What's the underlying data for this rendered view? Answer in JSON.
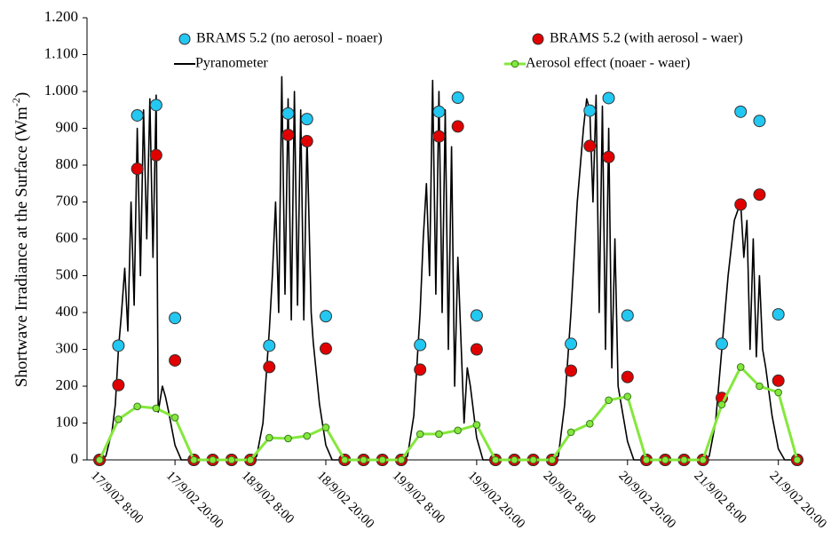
{
  "chart_data": {
    "type": "scatter",
    "y_label": [
      "Shortwave Irradiance at the Surface (Wm",
      "-2",
      ")"
    ],
    "ylim": [
      0,
      1200
    ],
    "yticks": [
      0,
      100,
      200,
      300,
      400,
      500,
      600,
      700,
      800,
      900,
      {
        "value": 1000,
        "label": "1.000"
      },
      {
        "value": 1100,
        "label": "1.100"
      },
      {
        "value": 1200,
        "label": "1.200"
      }
    ],
    "xlim": [
      "17/9/02 6:00",
      "22/9/02 0:00"
    ],
    "xticks": [
      "17/9/02 8:00",
      "17/9/02 20:00",
      "18/9/02 8:00",
      "18/9/02 20:00",
      "19/9/02 8:00",
      "19/9/02 20:00",
      "20/9/02 8:00",
      "20/9/02 20:00",
      "21/9/02 8:00",
      "21/9/02 20:00"
    ],
    "grid": false,
    "x": [
      "17/9/02 8:00",
      "17/9/02 11:00",
      "17/9/02 14:00",
      "17/9/02 17:00",
      "17/9/02 20:00",
      "17/9/02 23:00",
      "18/9/02 2:00",
      "18/9/02 5:00",
      "18/9/02 8:00",
      "18/9/02 11:00",
      "18/9/02 14:00",
      "18/9/02 17:00",
      "18/9/02 20:00",
      "18/9/02 23:00",
      "19/9/02 2:00",
      "19/9/02 5:00",
      "19/9/02 8:00",
      "19/9/02 11:00",
      "19/9/02 14:00",
      "19/9/02 17:00",
      "19/9/02 20:00",
      "19/9/02 23:00",
      "20/9/02 2:00",
      "20/9/02 5:00",
      "20/9/02 8:00",
      "20/9/02 11:00",
      "20/9/02 14:00",
      "20/9/02 17:00",
      "20/9/02 20:00",
      "20/9/02 23:00",
      "21/9/02 2:00",
      "21/9/02 5:00",
      "21/9/02 8:00",
      "21/9/02 11:00",
      "21/9/02 14:00",
      "21/9/02 17:00",
      "21/9/02 20:00",
      "21/9/02 23:00"
    ],
    "series": [
      {
        "name": "BRAMS 5.2 (no aerosol - noaer)",
        "color": "#22c8f2",
        "style": "markers",
        "values": [
          0,
          310,
          935,
          963,
          385,
          0,
          0,
          0,
          0,
          310,
          940,
          925,
          390,
          0,
          0,
          0,
          0,
          312,
          945,
          983,
          392,
          0,
          0,
          0,
          0,
          315,
          948,
          982,
          392,
          0,
          0,
          0,
          0,
          315,
          945,
          920,
          395,
          0
        ]
      },
      {
        "name": "BRAMS 5.2 (with aerosol - waer)",
        "color": "#e00000",
        "style": "markers",
        "values": [
          0,
          203,
          790,
          827,
          270,
          0,
          0,
          0,
          0,
          252,
          882,
          865,
          302,
          0,
          0,
          0,
          0,
          245,
          878,
          905,
          300,
          0,
          0,
          0,
          0,
          242,
          852,
          822,
          225,
          0,
          0,
          0,
          0,
          168,
          693,
          720,
          215,
          0
        ]
      },
      {
        "name": "Pyranometer",
        "color": "#000000",
        "style": "line",
        "x": [
          "17/9/02 8:00",
          "17/9/02 9:00",
          "17/9/02 10:00",
          "17/9/02 10:30",
          "17/9/02 11:00",
          "17/9/02 11:30",
          "17/9/02 12:00",
          "17/9/02 12:30",
          "17/9/02 13:00",
          "17/9/02 13:30",
          "17/9/02 14:00",
          "17/9/02 14:30",
          "17/9/02 15:00",
          "17/9/02 15:30",
          "17/9/02 16:00",
          "17/9/02 16:30",
          "17/9/02 17:00",
          "17/9/02 17:20",
          "17/9/02 18:00",
          "17/9/02 18:30",
          "17/9/02 19:00",
          "17/9/02 20:00",
          "17/9/02 21:00",
          "18/9/02 8:00",
          "18/9/02 9:00",
          "18/9/02 10:00",
          "18/9/02 11:00",
          "18/9/02 11:30",
          "18/9/02 12:00",
          "18/9/02 12:30",
          "18/9/02 13:00",
          "18/9/02 13:30",
          "18/9/02 14:00",
          "18/9/02 14:30",
          "18/9/02 15:00",
          "18/9/02 15:30",
          "18/9/02 16:00",
          "18/9/02 16:30",
          "18/9/02 17:00",
          "18/9/02 17:40",
          "18/9/02 18:00",
          "18/9/02 19:00",
          "18/9/02 20:00",
          "18/9/02 21:00",
          "19/9/02 8:00",
          "19/9/02 9:00",
          "19/9/02 10:00",
          "19/9/02 11:00",
          "19/9/02 11:30",
          "19/9/02 12:00",
          "19/9/02 12:30",
          "19/9/02 13:00",
          "19/9/02 13:30",
          "19/9/02 14:00",
          "19/9/02 14:30",
          "19/9/02 15:00",
          "19/9/02 15:30",
          "19/9/02 16:00",
          "19/9/02 16:30",
          "19/9/02 17:00",
          "19/9/02 18:00",
          "19/9/02 18:30",
          "19/9/02 19:00",
          "19/9/02 20:00",
          "19/9/02 21:00",
          "20/9/02 8:00",
          "20/9/02 9:00",
          "20/9/02 10:00",
          "20/9/02 11:00",
          "20/9/02 12:00",
          "20/9/02 13:00",
          "20/9/02 13:30",
          "20/9/02 14:00",
          "20/9/02 14:30",
          "20/9/02 15:00",
          "20/9/02 15:30",
          "20/9/02 16:00",
          "20/9/02 16:30",
          "20/9/02 17:00",
          "20/9/02 17:30",
          "20/9/02 18:00",
          "20/9/02 18:30",
          "20/9/02 19:00",
          "20/9/02 20:00",
          "20/9/02 21:00",
          "21/9/02 8:00",
          "21/9/02 9:00",
          "21/9/02 10:00",
          "21/9/02 11:00",
          "21/9/02 12:00",
          "21/9/02 13:00",
          "21/9/02 14:00",
          "21/9/02 14:30",
          "21/9/02 15:00",
          "21/9/02 15:30",
          "21/9/02 16:00",
          "21/9/02 16:30",
          "21/9/02 17:00",
          "21/9/02 17:30",
          "21/9/02 18:00",
          "21/9/02 19:00",
          "21/9/02 20:00",
          "21/9/02 21:00",
          "21/9/02 23:00"
        ],
        "values": [
          0,
          10,
          80,
          150,
          300,
          400,
          520,
          350,
          700,
          420,
          900,
          500,
          950,
          600,
          980,
          550,
          990,
          130,
          200,
          170,
          130,
          40,
          0,
          0,
          10,
          100,
          350,
          500,
          700,
          400,
          1040,
          450,
          980,
          380,
          1000,
          420,
          950,
          380,
          880,
          400,
          320,
          150,
          40,
          0,
          0,
          10,
          120,
          400,
          600,
          750,
          500,
          1030,
          450,
          1000,
          400,
          950,
          300,
          850,
          200,
          550,
          100,
          250,
          200,
          60,
          0,
          0,
          10,
          150,
          400,
          700,
          900,
          980,
          950,
          700,
          990,
          400,
          960,
          300,
          900,
          250,
          600,
          200,
          150,
          50,
          0,
          0,
          10,
          100,
          300,
          500,
          650,
          700,
          550,
          650,
          300,
          600,
          280,
          500,
          300,
          250,
          120,
          30,
          0,
          0
        ]
      },
      {
        "name": "Aerosol effect (noaer - waer)",
        "color": "#84e83c",
        "style": "line+markers",
        "values": [
          0,
          110,
          145,
          140,
          115,
          0,
          0,
          0,
          0,
          60,
          58,
          65,
          88,
          0,
          0,
          0,
          0,
          70,
          70,
          80,
          95,
          0,
          0,
          0,
          0,
          75,
          98,
          162,
          172,
          0,
          0,
          0,
          0,
          150,
          252,
          200,
          183,
          0
        ]
      }
    ]
  }
}
